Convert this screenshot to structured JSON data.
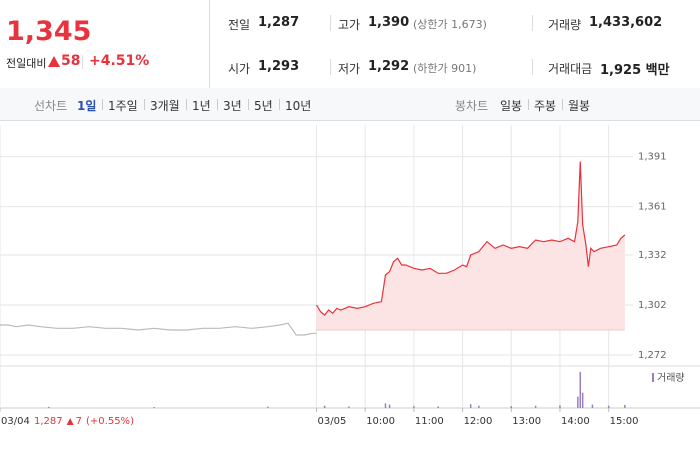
{
  "header": {
    "price": "1,345",
    "change_label": "전일대비",
    "change": "58",
    "change_pct": "+4.51%"
  },
  "info": [
    {
      "label": "전일",
      "value": "1,287"
    },
    {
      "label": "고가",
      "value": "1,390",
      "note": "(상한가 1,673)"
    },
    {
      "label": "거래량",
      "value": "1,433,602"
    },
    {
      "label": "시가",
      "value": "1,293"
    },
    {
      "label": "저가",
      "value": "1,292",
      "note": "(하한가 901)"
    },
    {
      "label": "거래대금",
      "value": "1,925 백만"
    }
  ],
  "tabs": {
    "line_label": "선차트",
    "line": [
      "1일",
      "1주일",
      "3개월",
      "1년",
      "3년",
      "5년",
      "10년"
    ],
    "candle_label": "봉차트",
    "candle": [
      "일봉",
      "주봉",
      "월봉"
    ]
  },
  "chart_data": {
    "type": "line",
    "xlim": [
      -390,
      390
    ],
    "xticks": [
      {
        "value": -390,
        "label": "03/04"
      },
      {
        "value": 0,
        "label": "03/05"
      },
      {
        "value": 60,
        "label": "10:00"
      },
      {
        "value": 120,
        "label": "11:00"
      },
      {
        "value": 180,
        "label": "12:00"
      },
      {
        "value": 240,
        "label": "13:00"
      },
      {
        "value": 300,
        "label": "14:00"
      },
      {
        "value": 360,
        "label": "15:00"
      }
    ],
    "ylim": [
      1266,
      1410
    ],
    "yticks": [
      {
        "value": 1272,
        "label": "1,272"
      },
      {
        "value": 1302,
        "label": "1,302"
      },
      {
        "value": 1332,
        "label": "1,332"
      },
      {
        "value": 1361,
        "label": "1,361"
      },
      {
        "value": 1391,
        "label": "1,391"
      }
    ],
    "y2lim": [
      0,
      100000
    ],
    "grid": true,
    "series": [
      {
        "color": "#bbbbbb",
        "x": [
          -390,
          -380,
          -370,
          -355,
          -340,
          -320,
          -300,
          -280,
          -260,
          -240,
          -220,
          -200,
          -180,
          -160,
          -140,
          -120,
          -100,
          -80,
          -60,
          -45,
          -35,
          -25,
          -15,
          -5,
          0
        ],
        "values": [
          1290,
          1290,
          1289,
          1290,
          1289,
          1288,
          1288,
          1289,
          1288,
          1288,
          1287,
          1288,
          1287,
          1287,
          1288,
          1288,
          1289,
          1288,
          1289,
          1290,
          1291,
          1284,
          1284,
          1285,
          1285
        ]
      },
      {
        "color": "#e8323c",
        "fill": "#fde4e4",
        "x": [
          0,
          5,
          10,
          15,
          20,
          25,
          30,
          40,
          50,
          60,
          70,
          80,
          85,
          90,
          95,
          100,
          105,
          110,
          120,
          130,
          140,
          150,
          160,
          170,
          180,
          185,
          190,
          200,
          210,
          220,
          230,
          240,
          250,
          260,
          270,
          280,
          290,
          300,
          310,
          318,
          322,
          325,
          328,
          332,
          335,
          338,
          342,
          350,
          360,
          370,
          375,
          380
        ],
        "values": [
          1302,
          1298,
          1296,
          1299,
          1297,
          1300,
          1299,
          1301,
          1300,
          1301,
          1303,
          1304,
          1320,
          1322,
          1328,
          1330,
          1326,
          1326,
          1324,
          1323,
          1324,
          1321,
          1321,
          1323,
          1326,
          1325,
          1332,
          1334,
          1340,
          1336,
          1338,
          1336,
          1337,
          1336,
          1341,
          1340,
          1341,
          1340,
          1342,
          1340,
          1352,
          1388,
          1350,
          1338,
          1325,
          1336,
          1334,
          1336,
          1337,
          1338,
          1342,
          1344
        ]
      },
      {
        "name": "거래량",
        "type": "bar",
        "axis": "y2",
        "color": "#9a7fc0",
        "x": [
          -330,
          -200,
          -60,
          10,
          40,
          85,
          90,
          120,
          150,
          190,
          200,
          240,
          270,
          300,
          322,
          325,
          328,
          340,
          360,
          380
        ],
        "values": [
          3000,
          2500,
          3500,
          6000,
          4000,
          12000,
          9000,
          5000,
          4000,
          10000,
          6000,
          5000,
          6000,
          7000,
          30000,
          95000,
          40000,
          9000,
          6000,
          8000
        ]
      }
    ]
  },
  "prev_day": {
    "price": "1,287",
    "change": "7",
    "change_pct": "(+0.55%)"
  }
}
